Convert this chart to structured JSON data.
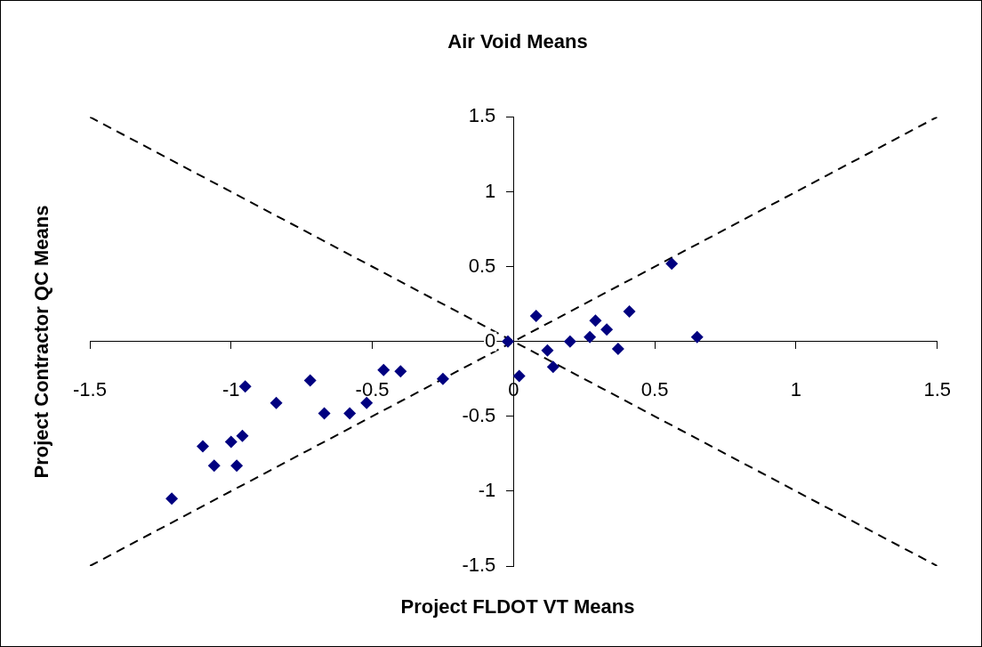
{
  "chart_data": {
    "type": "scatter",
    "title": "Air Void Means",
    "xlabel": "Project FLDOT VT Means",
    "ylabel": "Project Contractor QC Means",
    "xlim": [
      -1.5,
      1.5
    ],
    "ylim": [
      -1.5,
      1.5
    ],
    "xticks": [
      -1.5,
      -1,
      -0.5,
      0,
      0.5,
      1,
      1.5
    ],
    "yticks": [
      -1.5,
      -1,
      -0.5,
      0,
      0.5,
      1,
      1.5
    ],
    "grid": false,
    "legend": false,
    "marker": "diamond",
    "series": [
      {
        "type": "scatter",
        "color": "#000080",
        "x": [
          -1.21,
          -1.1,
          -1.06,
          -1.0,
          -0.96,
          -0.98,
          -0.95,
          -0.84,
          -0.72,
          -0.67,
          -0.58,
          -0.52,
          -0.46,
          -0.4,
          -0.25,
          -0.02,
          0.02,
          0.08,
          0.12,
          0.14,
          0.2,
          0.27,
          0.29,
          0.33,
          0.37,
          0.41,
          0.56,
          0.65
        ],
        "values": [
          -1.05,
          -0.7,
          -0.83,
          -0.67,
          -0.63,
          -0.83,
          -0.3,
          -0.41,
          -0.26,
          -0.48,
          -0.48,
          -0.41,
          -0.19,
          -0.2,
          -0.25,
          0,
          -0.23,
          0.17,
          -0.06,
          -0.17,
          0,
          0.03,
          0.14,
          0.08,
          -0.05,
          0.2,
          0.52,
          0.03
        ]
      },
      {
        "type": "line",
        "color": "#000000",
        "line_style": "dashed",
        "marker": "none",
        "x": [
          -1.5,
          1.5
        ],
        "values": [
          -1.5,
          1.5
        ]
      },
      {
        "type": "line",
        "color": "#000000",
        "line_style": "dashed",
        "marker": "none",
        "x": [
          -1.5,
          1.5
        ],
        "values": [
          1.5,
          -1.5
        ]
      }
    ]
  }
}
